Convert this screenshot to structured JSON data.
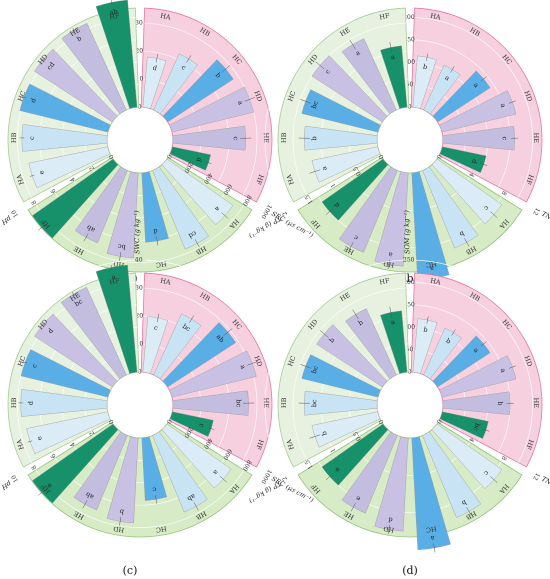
{
  "chart_data": [
    {
      "panel": "(a)",
      "type": "radial-bar",
      "sectors": [
        {
          "axis": "SWC (g kg⁻¹)",
          "ticks": [
            "0",
            "10",
            "20",
            "30",
            "40"
          ],
          "max": 40,
          "categories": [
            "HA",
            "HB",
            "HC",
            "HD",
            "HE",
            "HF"
          ],
          "values": [
            18,
            22,
            28,
            30,
            26,
            14
          ],
          "errors": [
            1.5,
            1.5,
            2,
            2,
            2,
            1
          ],
          "letters": [
            "d",
            "c",
            "b",
            "a",
            "c",
            "d"
          ]
        },
        {
          "axis": "SEC (μs cm⁻¹)",
          "ticks": [
            "0",
            "200",
            "400",
            "600",
            "800",
            "1000"
          ],
          "max": 1000,
          "categories": [
            "HA",
            "HB",
            "HC",
            "HD",
            "HE",
            "HF"
          ],
          "values": [
            720,
            760,
            620,
            760,
            700,
            880
          ],
          "errors": [
            40,
            40,
            40,
            40,
            40,
            40
          ],
          "letters": [
            "a",
            "cd",
            "d",
            "bc",
            "ab",
            ""
          ]
        },
        {
          "axis": "pH",
          "ticks": [
            "0",
            "2",
            "4",
            "6",
            "8",
            "10"
          ],
          "max": 10,
          "categories": [
            "HA",
            "HB",
            "HC",
            "HD",
            "HE",
            "HF"
          ],
          "values": [
            7.2,
            7.6,
            8.1,
            8.3,
            8.5,
            9.6
          ],
          "errors": [
            0.2,
            0.2,
            0.2,
            0.2,
            0.2,
            0.2
          ],
          "letters": [
            "e",
            "c",
            "d",
            "cd",
            "b",
            "ab"
          ]
        }
      ]
    },
    {
      "panel": "(b)",
      "type": "radial-bar",
      "sectors": [
        {
          "axis": "SOM (g kg⁻¹)",
          "ticks": [
            "0",
            "50",
            "100",
            "150",
            "200",
            "250"
          ],
          "max": 250,
          "categories": [
            "HA",
            "HB",
            "HC",
            "HD",
            "HE",
            "HF"
          ],
          "values": [
            115,
            110,
            140,
            170,
            160,
            100
          ],
          "errors": [
            8,
            8,
            8,
            8,
            8,
            8
          ],
          "letters": [
            "b",
            "a",
            "a",
            "a",
            "c",
            "d"
          ]
        },
        {
          "axis": "TN (g kg⁻¹)",
          "ticks": [
            "0",
            "4",
            "8",
            "12"
          ],
          "max": 12,
          "categories": [
            "HA",
            "HB",
            "HC",
            "HD",
            "HE",
            "HF"
          ],
          "values": [
            8.5,
            9.0,
            11.5,
            10.0,
            9.5,
            8.0
          ],
          "errors": [
            0.5,
            0.5,
            0.5,
            0.5,
            0.5,
            0.5
          ],
          "letters": [
            "c",
            "b",
            "a",
            "a",
            "c",
            "d"
          ]
        },
        {
          "axis": "TP (g kg⁻¹)",
          "ticks": [
            "0",
            "0.5",
            "1",
            "1.5",
            "2"
          ],
          "max": 2,
          "categories": [
            "HA",
            "HB",
            "HC",
            "HD",
            "HE",
            "HF"
          ],
          "values": [
            1.2,
            1.3,
            1.4,
            1.5,
            1.4,
            1.1
          ],
          "errors": [
            0.1,
            0.1,
            0.1,
            0.1,
            0.1,
            0.1
          ],
          "letters": [
            "a",
            "b",
            "bc",
            "c",
            "a",
            "a"
          ]
        }
      ]
    },
    {
      "panel": "(c)",
      "type": "radial-bar",
      "sectors": [
        {
          "axis": "SWC (g kg⁻¹)",
          "ticks": [
            "0",
            "10",
            "20",
            "30",
            "40"
          ],
          "max": 40,
          "categories": [
            "HA",
            "HB",
            "HC",
            "HD",
            "HE",
            "HF"
          ],
          "values": [
            20,
            24,
            29,
            31,
            27,
            15
          ],
          "errors": [
            1.5,
            1.5,
            2,
            2,
            2,
            1
          ],
          "letters": [
            "c",
            "bc",
            "ab",
            "a",
            "bc",
            "c"
          ]
        },
        {
          "axis": "SEC (μs cm⁻¹)",
          "ticks": [
            "0",
            "200",
            "400",
            "600",
            "800",
            "1000"
          ],
          "max": 1000,
          "categories": [
            "HA",
            "HB",
            "HC",
            "HD",
            "HE",
            "HF"
          ],
          "values": [
            700,
            740,
            560,
            760,
            720,
            880
          ],
          "errors": [
            40,
            40,
            40,
            40,
            40,
            40
          ],
          "letters": [
            "a",
            "ab",
            "c",
            "b",
            "ab",
            "a"
          ]
        },
        {
          "axis": "pH",
          "ticks": [
            "0",
            "2",
            "4",
            "6",
            "8",
            "10"
          ],
          "max": 10,
          "categories": [
            "HA",
            "HB",
            "HC",
            "HD",
            "HE",
            "HF"
          ],
          "values": [
            7.4,
            7.7,
            8.0,
            8.3,
            8.6,
            9.6
          ],
          "errors": [
            0.2,
            0.2,
            0.2,
            0.2,
            0.2,
            0.2
          ],
          "letters": [
            "e",
            "d",
            "c",
            "d",
            "bc",
            "a"
          ]
        }
      ]
    },
    {
      "panel": "(d)",
      "type": "radial-bar",
      "sectors": [
        {
          "axis": "SOM (g kg⁻¹)",
          "ticks": [
            "0",
            "50",
            "100",
            "150",
            "200",
            "250"
          ],
          "max": 250,
          "categories": [
            "HA",
            "HB",
            "HC",
            "HD",
            "HE",
            "HF"
          ],
          "values": [
            120,
            115,
            140,
            170,
            150,
            105
          ],
          "errors": [
            8,
            8,
            8,
            8,
            8,
            8
          ],
          "letters": [
            "b",
            "b",
            "a",
            "a",
            "b",
            "bc"
          ]
        },
        {
          "axis": "TN (g kg⁻¹)",
          "ticks": [
            "0",
            "4",
            "8",
            "12"
          ],
          "max": 12,
          "categories": [
            "HA",
            "HB",
            "HC",
            "HD",
            "HE",
            "HF"
          ],
          "values": [
            8.5,
            9.5,
            12.0,
            10.0,
            9.0,
            8.0
          ],
          "errors": [
            0.5,
            0.5,
            0.5,
            0.5,
            0.5,
            0.5
          ],
          "letters": [
            "c",
            "b",
            "a",
            "d",
            "e",
            "a"
          ]
        },
        {
          "axis": "TP (g kg⁻¹)",
          "ticks": [
            "0",
            "0.5",
            "1",
            "1.5",
            "2"
          ],
          "max": 2,
          "categories": [
            "HA",
            "HB",
            "HC",
            "HD",
            "HE",
            "HF"
          ],
          "values": [
            1.2,
            1.3,
            1.4,
            1.4,
            1.3,
            1.1
          ],
          "errors": [
            0.1,
            0.1,
            0.1,
            0.1,
            0.1,
            0.1
          ],
          "letters": [
            "b",
            "bc",
            "bc",
            "b",
            "b",
            "a"
          ]
        }
      ]
    }
  ],
  "colors": {
    "sector_bg": [
      "#f7d0df",
      "#d6ebc6",
      "#e6f1df"
    ],
    "sector_stroke": [
      "#e27aa4",
      "#8fc27a",
      "#a7cd98"
    ],
    "bars": [
      "#dbecf7",
      "#c7e3f4",
      "#5aaee6",
      "#c9c1e4",
      "#c3bde0",
      "#17916a"
    ],
    "axis": "#666666"
  }
}
